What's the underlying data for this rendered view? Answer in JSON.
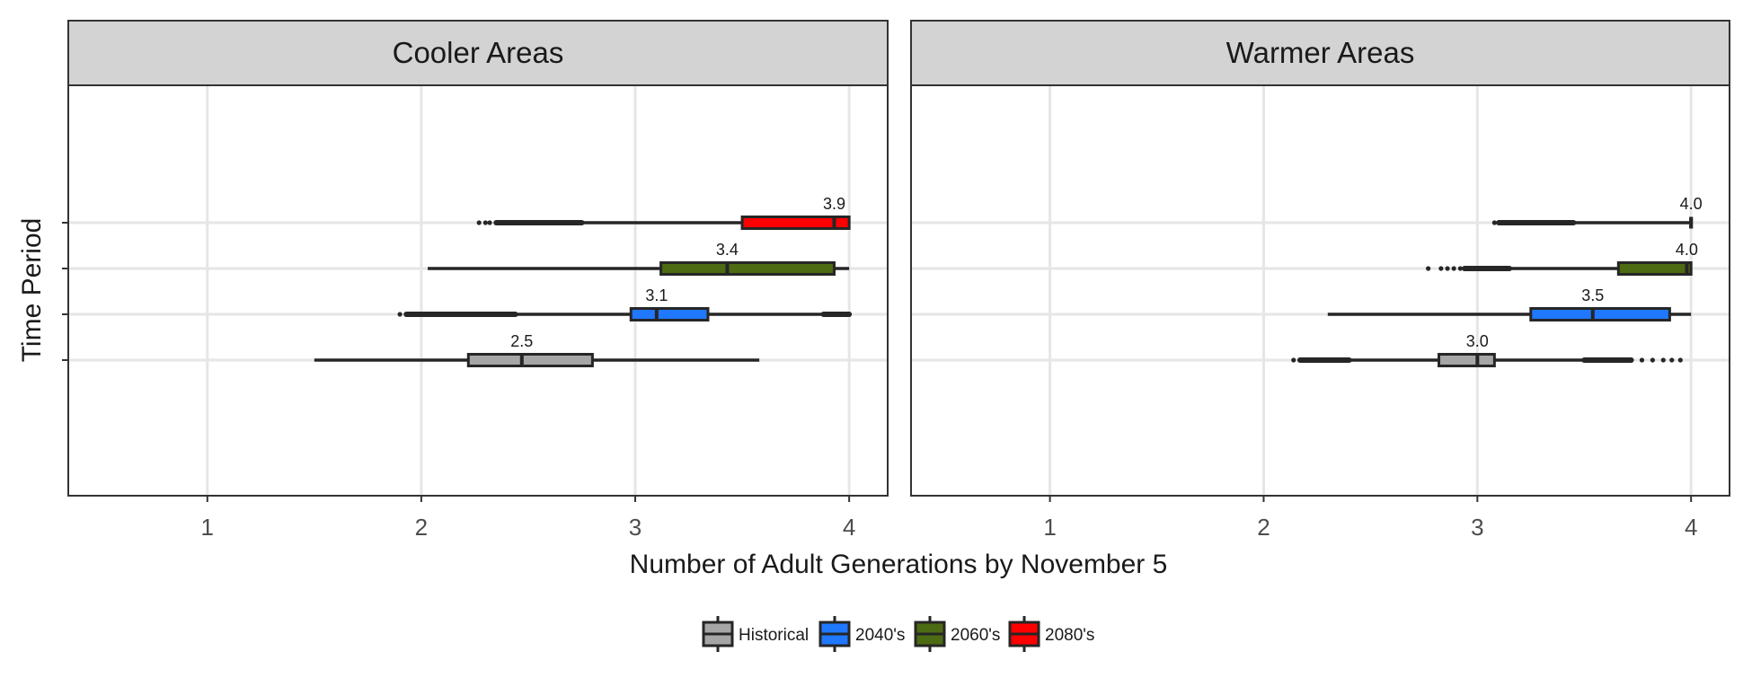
{
  "chart_data": {
    "type": "boxplot",
    "orientation": "horizontal",
    "xlabel": "Number of Adult Generations by November 5",
    "ylabel": "Time Period",
    "xlim": [
      0.35,
      4.18
    ],
    "x_ticks": [
      1,
      2,
      3,
      4
    ],
    "x_tick_labels": [
      "1",
      "2",
      "3",
      "4"
    ],
    "grid": true,
    "legend_position": "bottom",
    "series": [
      {
        "name": "Historical",
        "color": "#a6a6a6"
      },
      {
        "name": "2040's",
        "color": "#1f78ff"
      },
      {
        "name": "2060's",
        "color": "#4d6b12"
      },
      {
        "name": "2080's",
        "color": "#ff0000"
      }
    ],
    "panels": [
      {
        "title": "Cooler Areas",
        "boxes": [
          {
            "series": "Historical",
            "whisker_low": 1.5,
            "q1": 2.22,
            "median": 2.47,
            "q3": 2.8,
            "whisker_high": 3.58,
            "label": "2.5",
            "outlier_ranges": [],
            "outliers": []
          },
          {
            "series": "2040's",
            "whisker_low": 2.44,
            "q1": 2.98,
            "median": 3.1,
            "q3": 3.34,
            "whisker_high": 3.88,
            "label": "3.1",
            "outlier_ranges": [
              [
                1.93,
                2.44
              ],
              [
                3.88,
                4.0
              ]
            ],
            "outliers": [
              1.9
            ]
          },
          {
            "series": "2060's",
            "whisker_low": 2.03,
            "q1": 3.12,
            "median": 3.43,
            "q3": 3.93,
            "whisker_high": 4.0,
            "label": "3.4",
            "outlier_ranges": [],
            "outliers": []
          },
          {
            "series": "2080's",
            "whisker_low": 2.75,
            "q1": 3.5,
            "median": 3.93,
            "q3": 4.0,
            "whisker_high": 4.0,
            "label": "3.9",
            "outlier_ranges": [
              [
                2.35,
                2.75
              ]
            ],
            "outliers": [
              2.27,
              2.3,
              2.32
            ]
          }
        ]
      },
      {
        "title": "Warmer Areas",
        "boxes": [
          {
            "series": "Historical",
            "whisker_low": 2.4,
            "q1": 2.82,
            "median": 3.0,
            "q3": 3.08,
            "whisker_high": 3.5,
            "label": "3.0",
            "outlier_ranges": [
              [
                2.17,
                2.4
              ],
              [
                3.5,
                3.72
              ]
            ],
            "outliers": [
              2.14,
              3.77,
              3.82,
              3.87,
              3.91,
              3.95
            ]
          },
          {
            "series": "2040's",
            "whisker_low": 2.3,
            "q1": 3.25,
            "median": 3.54,
            "q3": 3.9,
            "whisker_high": 4.0,
            "label": "3.5",
            "outlier_ranges": [],
            "outliers": []
          },
          {
            "series": "2060's",
            "whisker_low": 3.15,
            "q1": 3.66,
            "median": 3.98,
            "q3": 4.0,
            "whisker_high": 4.0,
            "label": "4.0",
            "outlier_ranges": [
              [
                2.94,
                3.15
              ]
            ],
            "outliers": [
              2.77,
              2.83,
              2.86,
              2.89,
              2.92
            ]
          },
          {
            "series": "2080's",
            "whisker_low": 3.45,
            "q1": 4.0,
            "median": 4.0,
            "q3": 4.0,
            "whisker_high": 4.0,
            "label": "4.0",
            "outlier_ranges": [
              [
                3.1,
                3.45
              ]
            ],
            "outliers": [
              3.08
            ]
          }
        ]
      }
    ]
  }
}
